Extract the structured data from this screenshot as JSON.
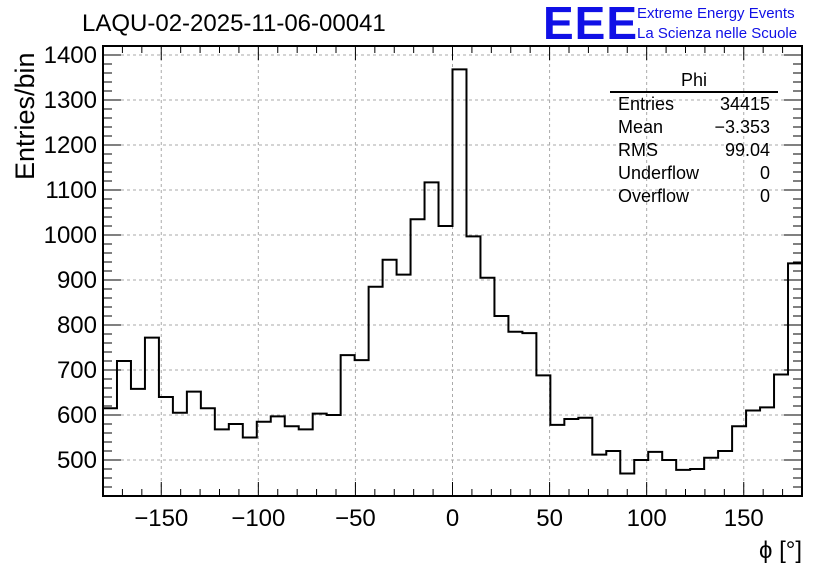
{
  "plot_title": "LAQU-02-2025-11-06-00041",
  "logo": {
    "mark": "EEE",
    "line1": "Extreme Energy Events",
    "line2": "La Scienza nelle Scuole",
    "color": "#1010e6"
  },
  "stats": {
    "name": "Phi",
    "rows": [
      {
        "label": "Entries",
        "value": "34415"
      },
      {
        "label": "Mean",
        "value": "−3.353"
      },
      {
        "label": "RMS",
        "value": "99.04"
      },
      {
        "label": "Underflow",
        "value": "0"
      },
      {
        "label": "Overflow",
        "value": "0"
      }
    ]
  },
  "chart_data": {
    "type": "bar",
    "style": "step-histogram",
    "xlabel": "ϕ [°]",
    "ylabel": "Entries/bin",
    "xlim": [
      -180,
      180
    ],
    "ylim": [
      420,
      1420
    ],
    "bin_width": 7.2,
    "grid": true,
    "x_ticks": [
      -150,
      -100,
      -50,
      0,
      50,
      100,
      150
    ],
    "y_ticks": [
      500,
      600,
      700,
      800,
      900,
      1000,
      1100,
      1200,
      1300,
      1400
    ],
    "x_tick_labels": [
      "−150",
      "−100",
      "−50",
      "0",
      "50",
      "100",
      "150"
    ],
    "y_tick_labels": [
      "500",
      "600",
      "700",
      "800",
      "900",
      "1000",
      "1100",
      "1200",
      "1300",
      "1400"
    ],
    "values": [
      615,
      720,
      658,
      772,
      640,
      605,
      652,
      615,
      568,
      580,
      550,
      585,
      597,
      575,
      568,
      603,
      600,
      733,
      722,
      885,
      945,
      912,
      1035,
      1117,
      1020,
      1368,
      997,
      905,
      820,
      785,
      782,
      688,
      578,
      591,
      594,
      512,
      520,
      470,
      500,
      518,
      500,
      478,
      480,
      505,
      520,
      575,
      610,
      617,
      690,
      937
    ],
    "line_color": "#000000",
    "grid_color": "#aaaaaa"
  }
}
